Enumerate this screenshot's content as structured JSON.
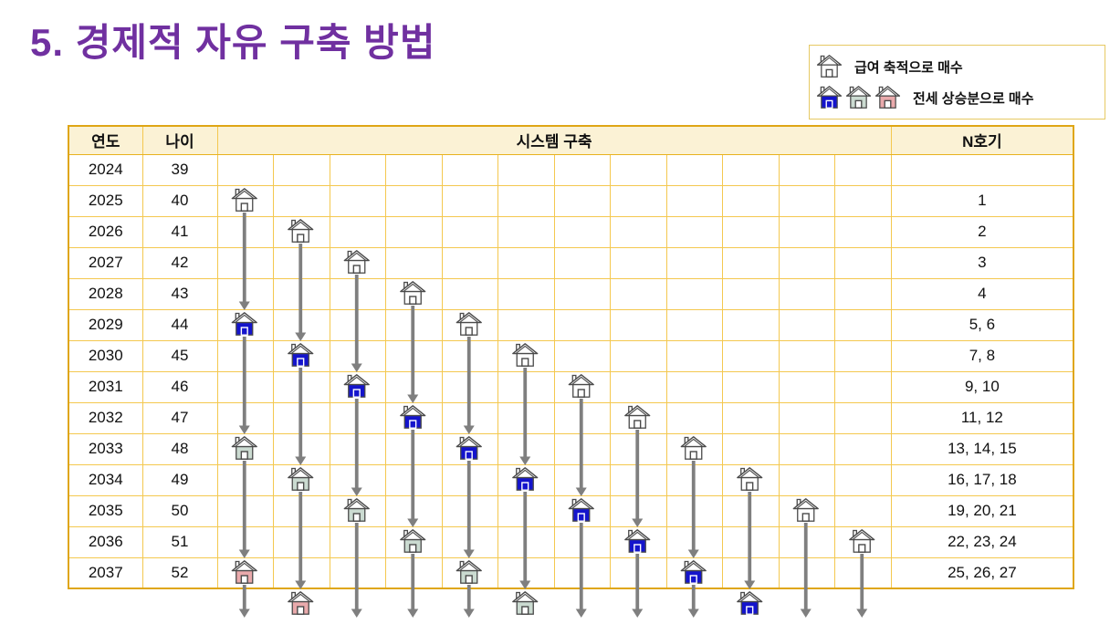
{
  "title": "5. 경제적 자유 구축 방법",
  "legend": {
    "salary": {
      "icons": [
        "white"
      ],
      "label": "급여 축적으로 매수"
    },
    "jeonse": {
      "icons": [
        "blue",
        "green",
        "pink"
      ],
      "label": "전세 상승분으로 매수"
    }
  },
  "table": {
    "headers": {
      "year": "연도",
      "age": "나이",
      "system": "시스템 구축",
      "unit": "N호기"
    },
    "rows": [
      {
        "year": "2024",
        "age": "39",
        "unit": ""
      },
      {
        "year": "2025",
        "age": "40",
        "unit": "1"
      },
      {
        "year": "2026",
        "age": "41",
        "unit": "2"
      },
      {
        "year": "2027",
        "age": "42",
        "unit": "3"
      },
      {
        "year": "2028",
        "age": "43",
        "unit": "4"
      },
      {
        "year": "2029",
        "age": "44",
        "unit": "5, 6"
      },
      {
        "year": "2030",
        "age": "45",
        "unit": "7, 8"
      },
      {
        "year": "2031",
        "age": "46",
        "unit": "9, 10"
      },
      {
        "year": "2032",
        "age": "47",
        "unit": "11, 12"
      },
      {
        "year": "2033",
        "age": "48",
        "unit": "13, 14, 15"
      },
      {
        "year": "2034",
        "age": "49",
        "unit": "16, 17, 18"
      },
      {
        "year": "2035",
        "age": "50",
        "unit": "19, 20, 21"
      },
      {
        "year": "2036",
        "age": "51",
        "unit": "22, 23, 24"
      },
      {
        "year": "2037",
        "age": "52",
        "unit": "25, 26, 27"
      }
    ]
  },
  "grid": {
    "columns": 12,
    "houses": [
      {
        "col": 1,
        "year": 2025,
        "color": "white"
      },
      {
        "col": 1,
        "year": 2029,
        "color": "blue"
      },
      {
        "col": 1,
        "year": 2033,
        "color": "green"
      },
      {
        "col": 1,
        "year": 2037,
        "color": "pink"
      },
      {
        "col": 2,
        "year": 2026,
        "color": "white"
      },
      {
        "col": 2,
        "year": 2030,
        "color": "blue"
      },
      {
        "col": 2,
        "year": 2034,
        "color": "green"
      },
      {
        "col": 2,
        "year": 2038,
        "color": "pink"
      },
      {
        "col": 3,
        "year": 2027,
        "color": "white"
      },
      {
        "col": 3,
        "year": 2031,
        "color": "blue"
      },
      {
        "col": 3,
        "year": 2035,
        "color": "green"
      },
      {
        "col": 4,
        "year": 2028,
        "color": "white"
      },
      {
        "col": 4,
        "year": 2032,
        "color": "blue"
      },
      {
        "col": 4,
        "year": 2036,
        "color": "green"
      },
      {
        "col": 5,
        "year": 2029,
        "color": "white"
      },
      {
        "col": 5,
        "year": 2033,
        "color": "blue"
      },
      {
        "col": 5,
        "year": 2037,
        "color": "green"
      },
      {
        "col": 6,
        "year": 2030,
        "color": "white"
      },
      {
        "col": 6,
        "year": 2034,
        "color": "blue"
      },
      {
        "col": 6,
        "year": 2038,
        "color": "green"
      },
      {
        "col": 7,
        "year": 2031,
        "color": "white"
      },
      {
        "col": 7,
        "year": 2035,
        "color": "blue"
      },
      {
        "col": 8,
        "year": 2032,
        "color": "white"
      },
      {
        "col": 8,
        "year": 2036,
        "color": "blue"
      },
      {
        "col": 9,
        "year": 2033,
        "color": "white"
      },
      {
        "col": 9,
        "year": 2037,
        "color": "blue"
      },
      {
        "col": 10,
        "year": 2034,
        "color": "white"
      },
      {
        "col": 10,
        "year": 2038,
        "color": "blue"
      },
      {
        "col": 11,
        "year": 2035,
        "color": "white"
      },
      {
        "col": 12,
        "year": 2036,
        "color": "white"
      }
    ],
    "arrows": [
      {
        "col": 1,
        "from": 2025,
        "to": 2029
      },
      {
        "col": 1,
        "from": 2029,
        "to": 2033
      },
      {
        "col": 1,
        "from": 2033,
        "to": 2037
      },
      {
        "col": 1,
        "from": 2037,
        "to": "edge"
      },
      {
        "col": 2,
        "from": 2026,
        "to": 2030
      },
      {
        "col": 2,
        "from": 2030,
        "to": 2034
      },
      {
        "col": 2,
        "from": 2034,
        "to": 2038
      },
      {
        "col": 3,
        "from": 2027,
        "to": 2031
      },
      {
        "col": 3,
        "from": 2031,
        "to": 2035
      },
      {
        "col": 3,
        "from": 2035,
        "to": "edge"
      },
      {
        "col": 4,
        "from": 2028,
        "to": 2032
      },
      {
        "col": 4,
        "from": 2032,
        "to": 2036
      },
      {
        "col": 4,
        "from": 2036,
        "to": "edge"
      },
      {
        "col": 5,
        "from": 2029,
        "to": 2033
      },
      {
        "col": 5,
        "from": 2033,
        "to": 2037
      },
      {
        "col": 5,
        "from": 2037,
        "to": "edge"
      },
      {
        "col": 6,
        "from": 2030,
        "to": 2034
      },
      {
        "col": 6,
        "from": 2034,
        "to": 2038
      },
      {
        "col": 7,
        "from": 2031,
        "to": 2035
      },
      {
        "col": 7,
        "from": 2035,
        "to": "edge"
      },
      {
        "col": 8,
        "from": 2032,
        "to": 2036
      },
      {
        "col": 8,
        "from": 2036,
        "to": "edge"
      },
      {
        "col": 9,
        "from": 2033,
        "to": 2037
      },
      {
        "col": 9,
        "from": 2037,
        "to": "edge"
      },
      {
        "col": 10,
        "from": 2034,
        "to": 2038
      },
      {
        "col": 11,
        "from": 2035,
        "to": "edge"
      },
      {
        "col": 12,
        "from": 2036,
        "to": "edge"
      }
    ]
  },
  "colors": {
    "title": "#7030A0",
    "arrow": "#7F7F7F",
    "border_inner": "#F4C84F",
    "border_outer": "#DFA615",
    "header_bg": "#FBF2D5",
    "house_outline": "#4A4A4A",
    "house_white_body": "#FFFFFF",
    "house_blue_body": "#1414CC",
    "house_green_body": "#CBDBD1",
    "house_pink_body": "#EAAAAC"
  }
}
